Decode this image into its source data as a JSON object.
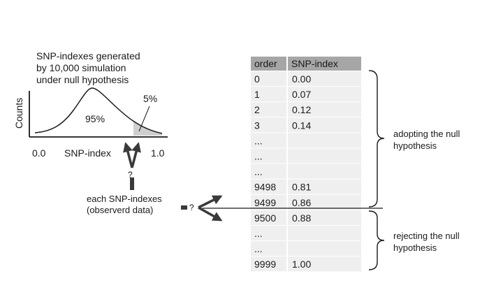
{
  "figure": {
    "simulation_caption": [
      "SNP-indexes generated",
      "by 10,000 simulation",
      "under null hypothesis"
    ],
    "y_axis_label": "Counts",
    "x_axis_label": "SNP-index",
    "x_min_label": "0.0",
    "x_max_label": "1.0",
    "central_area_label": "95%",
    "tail_area_label": "5%",
    "question_mark": "?",
    "observed_caption": [
      "each SNP-indexes",
      "(observerd data)"
    ],
    "colors": {
      "ink": "#1a1a1a",
      "arrow": "#3a3a3a",
      "tail_fill": "#cfcfcf",
      "header_bg": "#a6a6a6",
      "row_bg": "#efefef",
      "row_divider": "#ffffff"
    }
  },
  "table": {
    "headers": [
      "order",
      "SNP-index"
    ],
    "rows": [
      [
        "0",
        "0.00"
      ],
      [
        "1",
        "0.07"
      ],
      [
        "2",
        "0.12"
      ],
      [
        "3",
        "0.14"
      ],
      [
        "...",
        ""
      ],
      [
        "...",
        ""
      ],
      [
        "...",
        ""
      ],
      [
        "9498",
        "0.81"
      ],
      [
        "9499",
        "0.86"
      ],
      [
        "9500",
        "0.88"
      ],
      [
        "...",
        ""
      ],
      [
        "...",
        ""
      ],
      [
        "9999",
        "1.00"
      ]
    ]
  },
  "brackets": {
    "upper_label": [
      "adopting the null",
      "hypothesis"
    ],
    "lower_label": [
      "rejecting the null",
      "hypothesis"
    ]
  }
}
